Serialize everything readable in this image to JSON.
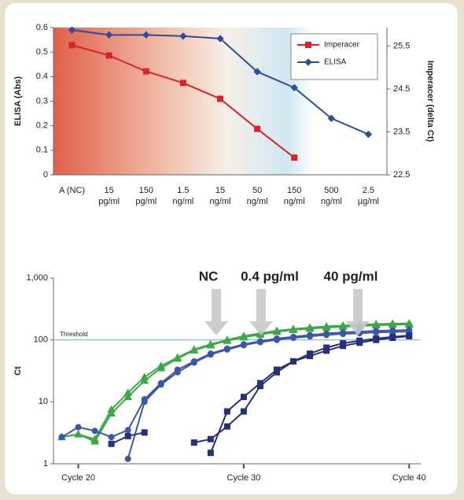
{
  "chart_data": [
    {
      "type": "line",
      "categories": [
        "A (NC)",
        "15\npg/ml",
        "150\npg/ml",
        "1.5\nng/ml",
        "15\nng/ml",
        "50\nng/ml",
        "150\nng/ml",
        "500\nng/ml",
        "2.5\nµg/ml"
      ],
      "y_label": "ELISA (Abs)",
      "y2_label": "Imperacer (delta Ct)",
      "ylim": [
        0,
        0.6
      ],
      "yticks": [
        0,
        0.1,
        0.2,
        0.3,
        0.4,
        0.5,
        0.6
      ],
      "y2lim": [
        22.5,
        25.93
      ],
      "y2ticks": [
        22.5,
        23.5,
        24.5,
        25.5
      ],
      "legend": "upper right",
      "series": [
        {
          "name": "Imperacer",
          "color": "#d9232a",
          "marker": "square",
          "axis": "y2",
          "values": [
            25.52,
            25.28,
            24.91,
            24.64,
            24.27,
            23.57,
            22.9,
            null,
            null
          ]
        },
        {
          "name": "ELISA",
          "color": "#2e4d9a",
          "marker": "diamond",
          "values": [
            0.59,
            0.57,
            0.57,
            0.565,
            0.555,
            0.42,
            0.355,
            0.23,
            0.165
          ]
        }
      ]
    },
    {
      "type": "line",
      "log_scale": true,
      "y_label": "Ct",
      "x": [
        19,
        20,
        21,
        22,
        23,
        24,
        25,
        26,
        27,
        28,
        29,
        30,
        31,
        32,
        33,
        34,
        35,
        36,
        37,
        38,
        39,
        40
      ],
      "xlim": [
        18.5,
        40.7
      ],
      "xticks": [
        {
          "value": 20,
          "label": "Cycle 20"
        },
        {
          "value": 30,
          "label": "Cycle 30"
        },
        {
          "value": 40,
          "label": "Cycle 40"
        }
      ],
      "ylim": [
        1,
        1000
      ],
      "yticks": [
        1,
        10,
        100,
        {
          "value": 1000,
          "label": "1,000"
        }
      ],
      "threshold": {
        "value": 100,
        "label": "Threshold"
      },
      "annotations": [
        {
          "text": "NC",
          "color": "#3aa845"
        },
        {
          "text": "0.4 pg/ml",
          "color": "#1fa5d0"
        },
        {
          "text": "40 pg/ml",
          "color": "#4a5aa0"
        }
      ],
      "series": [
        {
          "color": "#3aa845",
          "marker": "triangle",
          "values": [
            2.7,
            3.0,
            2.5,
            7.5,
            14,
            25,
            38,
            52,
            70,
            85,
            100,
            115,
            128,
            140,
            150,
            158,
            165,
            170,
            175,
            180,
            183,
            185
          ]
        },
        {
          "color": "#3aa845",
          "marker": "triangle",
          "values": [
            2.7,
            3.0,
            2.3,
            6.5,
            12,
            22,
            35,
            50,
            68,
            82,
            97,
            110,
            122,
            135,
            145,
            152,
            158,
            163,
            168,
            172,
            175,
            178
          ]
        },
        {
          "color": "#3b56a8",
          "marker": "circle",
          "values": [
            2.7,
            3.9,
            3.4,
            2.7,
            3.5,
            11,
            20,
            33,
            45,
            60,
            72,
            85,
            95,
            105,
            112,
            120,
            127,
            132,
            136,
            140,
            142,
            145
          ]
        },
        {
          "color": "#3b56a8",
          "marker": "circle",
          "values": [
            null,
            null,
            null,
            null,
            1.2,
            10,
            19,
            30,
            43,
            58,
            70,
            82,
            92,
            100,
            108,
            114,
            120,
            125,
            128,
            132,
            134,
            136
          ]
        },
        {
          "color": "#27307a",
          "marker": "square",
          "values": [
            null,
            null,
            null,
            2.1,
            2.8,
            3.2,
            null,
            null,
            null,
            1.5,
            7,
            12,
            20,
            33,
            45,
            55,
            67,
            80,
            90,
            100,
            108,
            115
          ]
        },
        {
          "color": "#27307a",
          "marker": "square",
          "values": [
            null,
            null,
            null,
            null,
            null,
            null,
            null,
            null,
            2.2,
            2.5,
            4,
            7,
            18,
            30,
            45,
            60,
            75,
            88,
            97,
            105,
            112,
            118
          ]
        }
      ]
    }
  ]
}
